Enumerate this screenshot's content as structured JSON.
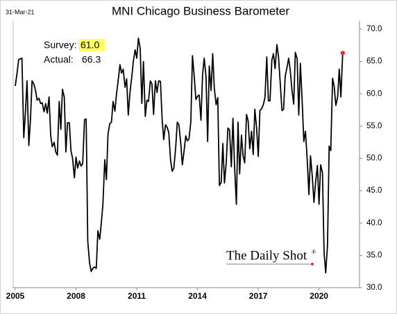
{
  "chart_data": {
    "type": "line",
    "title": "MNI Chicago Business Barometer",
    "date_note": "31-Mar-21",
    "annotations": {
      "survey_label": "Survey:",
      "survey_value": "61.0",
      "actual_label": "Actual:",
      "actual_value": "66.3"
    },
    "watermark": "The Daily Shot",
    "watermark_mark": "®",
    "xlim": [
      2005,
      2022
    ],
    "xticks": [
      2005,
      2008,
      2011,
      2014,
      2017,
      2020
    ],
    "ylim": [
      30,
      70
    ],
    "yticks": [
      {
        "value": 30,
        "label": "30.0"
      },
      {
        "value": 35,
        "label": "35.0"
      },
      {
        "value": 40,
        "label": "40.0"
      },
      {
        "value": 45,
        "label": "45.0"
      },
      {
        "value": 50,
        "label": "50.0"
      },
      {
        "value": 55,
        "label": "55.0"
      },
      {
        "value": 60,
        "label": "60.0"
      },
      {
        "value": 65,
        "label": "65.0"
      },
      {
        "value": 70,
        "label": "70.0"
      }
    ],
    "y_axis_side": "right",
    "grid": false,
    "end_marker_color": "#e8312f",
    "x": [
      2005,
      2005.08,
      2005.17,
      2005.25,
      2005.33,
      2005.42,
      2005.5,
      2005.58,
      2005.67,
      2005.75,
      2005.83,
      2005.92,
      2006,
      2006.08,
      2006.17,
      2006.25,
      2006.33,
      2006.42,
      2006.5,
      2006.58,
      2006.67,
      2006.75,
      2006.83,
      2006.92,
      2007,
      2007.08,
      2007.17,
      2007.25,
      2007.33,
      2007.42,
      2007.5,
      2007.58,
      2007.67,
      2007.75,
      2007.83,
      2007.92,
      2008,
      2008.08,
      2008.17,
      2008.25,
      2008.33,
      2008.42,
      2008.5,
      2008.58,
      2008.67,
      2008.75,
      2008.83,
      2008.92,
      2009,
      2009.08,
      2009.17,
      2009.25,
      2009.33,
      2009.42,
      2009.5,
      2009.58,
      2009.67,
      2009.75,
      2009.83,
      2009.92,
      2010,
      2010.08,
      2010.17,
      2010.25,
      2010.33,
      2010.42,
      2010.5,
      2010.58,
      2010.67,
      2010.75,
      2010.83,
      2010.92,
      2011,
      2011.08,
      2011.17,
      2011.25,
      2011.33,
      2011.42,
      2011.5,
      2011.58,
      2011.67,
      2011.75,
      2011.83,
      2011.92,
      2012,
      2012.08,
      2012.17,
      2012.25,
      2012.33,
      2012.42,
      2012.5,
      2012.58,
      2012.67,
      2012.75,
      2012.83,
      2012.92,
      2013,
      2013.08,
      2013.17,
      2013.25,
      2013.33,
      2013.42,
      2013.5,
      2013.58,
      2013.67,
      2013.75,
      2013.83,
      2013.92,
      2014,
      2014.08,
      2014.17,
      2014.25,
      2014.33,
      2014.42,
      2014.5,
      2014.58,
      2014.67,
      2014.75,
      2014.83,
      2014.92,
      2015,
      2015.08,
      2015.17,
      2015.25,
      2015.33,
      2015.42,
      2015.5,
      2015.58,
      2015.67,
      2015.75,
      2015.83,
      2015.92,
      2016,
      2016.08,
      2016.17,
      2016.25,
      2016.33,
      2016.42,
      2016.5,
      2016.58,
      2016.67,
      2016.75,
      2016.83,
      2016.92,
      2017,
      2017.08,
      2017.17,
      2017.25,
      2017.33,
      2017.42,
      2017.5,
      2017.58,
      2017.67,
      2017.75,
      2017.83,
      2017.92,
      2018,
      2018.08,
      2018.17,
      2018.25,
      2018.33,
      2018.42,
      2018.5,
      2018.58,
      2018.67,
      2018.75,
      2018.83,
      2018.92,
      2019,
      2019.08,
      2019.17,
      2019.25,
      2019.33,
      2019.42,
      2019.5,
      2019.58,
      2019.67,
      2019.75,
      2019.83,
      2019.92,
      2020,
      2020.08,
      2020.17,
      2020.25,
      2020.33,
      2020.42,
      2020.5,
      2020.58,
      2020.67,
      2020.75,
      2020.83,
      2020.92,
      2021,
      2021.08,
      2021.17
    ],
    "series": [
      {
        "name": "MNI Chicago Business Barometer",
        "color": "#000000",
        "values": [
          61.2,
          63,
          65.3,
          65.4,
          65.5,
          53.2,
          57,
          62,
          52,
          56,
          62,
          61.5,
          60.5,
          59,
          59.3,
          58.5,
          58.6,
          57.2,
          58.5,
          57,
          59.5,
          53.5,
          51.8,
          52.5,
          51,
          50.5,
          58.8,
          54.5,
          60.7,
          59.5,
          51,
          55.5,
          55.5,
          51.2,
          50,
          47,
          50.2,
          48.5,
          49.6,
          48.8,
          49.2,
          56,
          56.1,
          37.2,
          33.8,
          32.5,
          33,
          33.2,
          33,
          38.8,
          37.5,
          40,
          43,
          49.8,
          46.7,
          53.8,
          55.4,
          55.6,
          58.8,
          57.3,
          60,
          62,
          64.5,
          63.2,
          63.8,
          61,
          62.3,
          56.7,
          60.4,
          62.5,
          65,
          66.8,
          65.5,
          68.6,
          67,
          58.5,
          65,
          56.5,
          59,
          58.8,
          62,
          61.5,
          56.8,
          62,
          60.2,
          62,
          61.9,
          56.2,
          52.9,
          55.2,
          54.8,
          54,
          49.7,
          48,
          48.5,
          51.6,
          55.6,
          55.2,
          52.4,
          49,
          51,
          53.5,
          52.7,
          53,
          55.7,
          65.9,
          63,
          59.1,
          59.6,
          59.8,
          55.9,
          63,
          65.5,
          62.6,
          52.6,
          64.3,
          60.5,
          66.2,
          60.8,
          58.3,
          59.4,
          45.8,
          46.3,
          52.3,
          46.2,
          49.4,
          54.7,
          54.4,
          48.7,
          56.2,
          48.7,
          42.9,
          55.6,
          47.6,
          53.6,
          50.4,
          49.3,
          56.8,
          55.8,
          51.5,
          54.2,
          50.6,
          57.6,
          54.6,
          50.3,
          57.4,
          57.7,
          58.3,
          59.4,
          65.7,
          58.9,
          58.9,
          65.2,
          66.2,
          63.9,
          67.6,
          65.7,
          61.9,
          57.4,
          57.6,
          62.7,
          64.1,
          65.5,
          63.6,
          60.4,
          58.4,
          66.4,
          65.4,
          56.7,
          64.7,
          58.7,
          52.6,
          54.2,
          49.7,
          44.4,
          50.4,
          47.1,
          43.2,
          46.3,
          48.9,
          42.9,
          49,
          47.8,
          35.4,
          32.3,
          36.6,
          51.9,
          51.2,
          62.4,
          61.1,
          58.2,
          59.5,
          63.8,
          59.5,
          66.3
        ]
      }
    ]
  }
}
